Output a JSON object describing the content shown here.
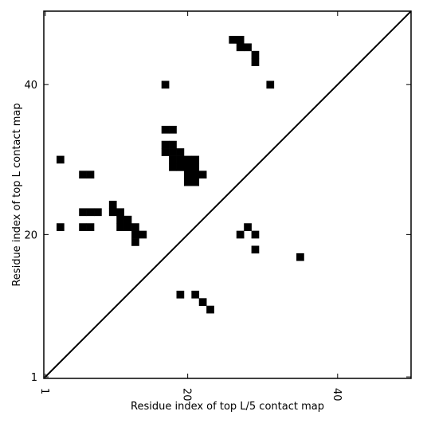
{
  "chart_data": {
    "type": "heatmap",
    "title": "",
    "xlabel": "Residue index of top L/5 contact map",
    "ylabel": "Residue index of top L contact map",
    "xlim": [
      0.8,
      49.8
    ],
    "ylim": [
      0.8,
      49.8
    ],
    "xticks": [
      1,
      20,
      40
    ],
    "yticks": [
      1,
      20,
      40
    ],
    "diagonal": true,
    "grid": false,
    "colors": {
      "cell": "#000000",
      "background": "#ffffff",
      "line": "#000000"
    },
    "cells_upper": [
      [
        27,
        45
      ],
      [
        26,
        46
      ],
      [
        27,
        46
      ],
      [
        28,
        45
      ],
      [
        29,
        43
      ],
      [
        29,
        44
      ],
      [
        31,
        40
      ],
      [
        17,
        40
      ],
      [
        17,
        34
      ],
      [
        18,
        34
      ],
      [
        17,
        32
      ],
      [
        18,
        32
      ],
      [
        17,
        31
      ],
      [
        18,
        31
      ],
      [
        19,
        31
      ],
      [
        18,
        30
      ],
      [
        19,
        30
      ],
      [
        20,
        30
      ],
      [
        21,
        30
      ],
      [
        18,
        29
      ],
      [
        19,
        29
      ],
      [
        20,
        29
      ],
      [
        21,
        29
      ],
      [
        20,
        28
      ],
      [
        21,
        28
      ],
      [
        22,
        28
      ],
      [
        20,
        27
      ],
      [
        21,
        27
      ],
      [
        3,
        30
      ],
      [
        6,
        28
      ],
      [
        7,
        28
      ],
      [
        6,
        23
      ],
      [
        7,
        23
      ],
      [
        8,
        23
      ],
      [
        6,
        21
      ],
      [
        7,
        21
      ],
      [
        3,
        21
      ],
      [
        10,
        24
      ],
      [
        10,
        23
      ],
      [
        11,
        23
      ],
      [
        11,
        22
      ],
      [
        12,
        22
      ],
      [
        11,
        21
      ],
      [
        12,
        21
      ],
      [
        13,
        21
      ],
      [
        13,
        20
      ],
      [
        14,
        20
      ],
      [
        13,
        19
      ]
    ],
    "cells_lower": [
      [
        28,
        21
      ],
      [
        27,
        20
      ],
      [
        29,
        20
      ],
      [
        29,
        18
      ],
      [
        35,
        17
      ],
      [
        19,
        12
      ],
      [
        21,
        12
      ],
      [
        22,
        11
      ],
      [
        23,
        10
      ]
    ]
  }
}
